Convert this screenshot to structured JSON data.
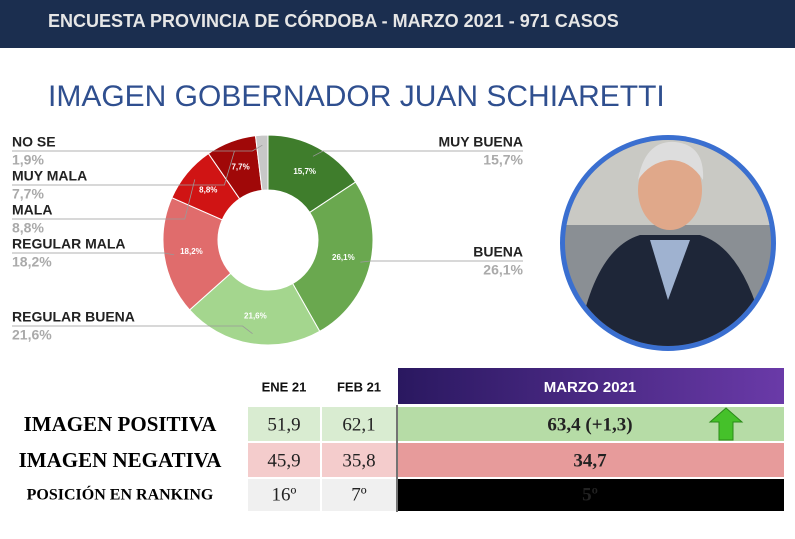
{
  "header": "ENCUESTA PROVINCIA DE CÓRDOBA - MARZO 2021 - 971 CASOS",
  "chart_data": {
    "type": "donut",
    "title": "IMAGEN GOBERNADOR JUAN SCHIARETTI",
    "categories": [
      "MUY BUENA",
      "BUENA",
      "REGULAR BUENA",
      "REGULAR MALA",
      "MALA",
      "MUY MALA",
      "NO SE"
    ],
    "values": [
      15.7,
      26.1,
      21.6,
      18.2,
      8.8,
      7.7,
      1.9
    ],
    "value_labels": [
      "15,7%",
      "26,1%",
      "21,6%",
      "18,2%",
      "8,8%",
      "7,7%",
      "1,9%"
    ],
    "colors": [
      "#3f7d2c",
      "#6aa84f",
      "#a4d68e",
      "#e06c6c",
      "#d01414",
      "#a00808",
      "#c8c8c8"
    ]
  },
  "table": {
    "columns": [
      "ENE 21",
      "FEB 21",
      "MARZO 2021"
    ],
    "rows": [
      [
        "IMAGEN POSITIVA",
        "51,9",
        "62,1",
        "63,4 (+1,3)"
      ],
      [
        "IMAGEN NEGATIVA",
        "45,9",
        "35,8",
        "34,7"
      ],
      [
        "POSICIÓN EN RANKING",
        "16º",
        "7º",
        "5º"
      ]
    ]
  }
}
